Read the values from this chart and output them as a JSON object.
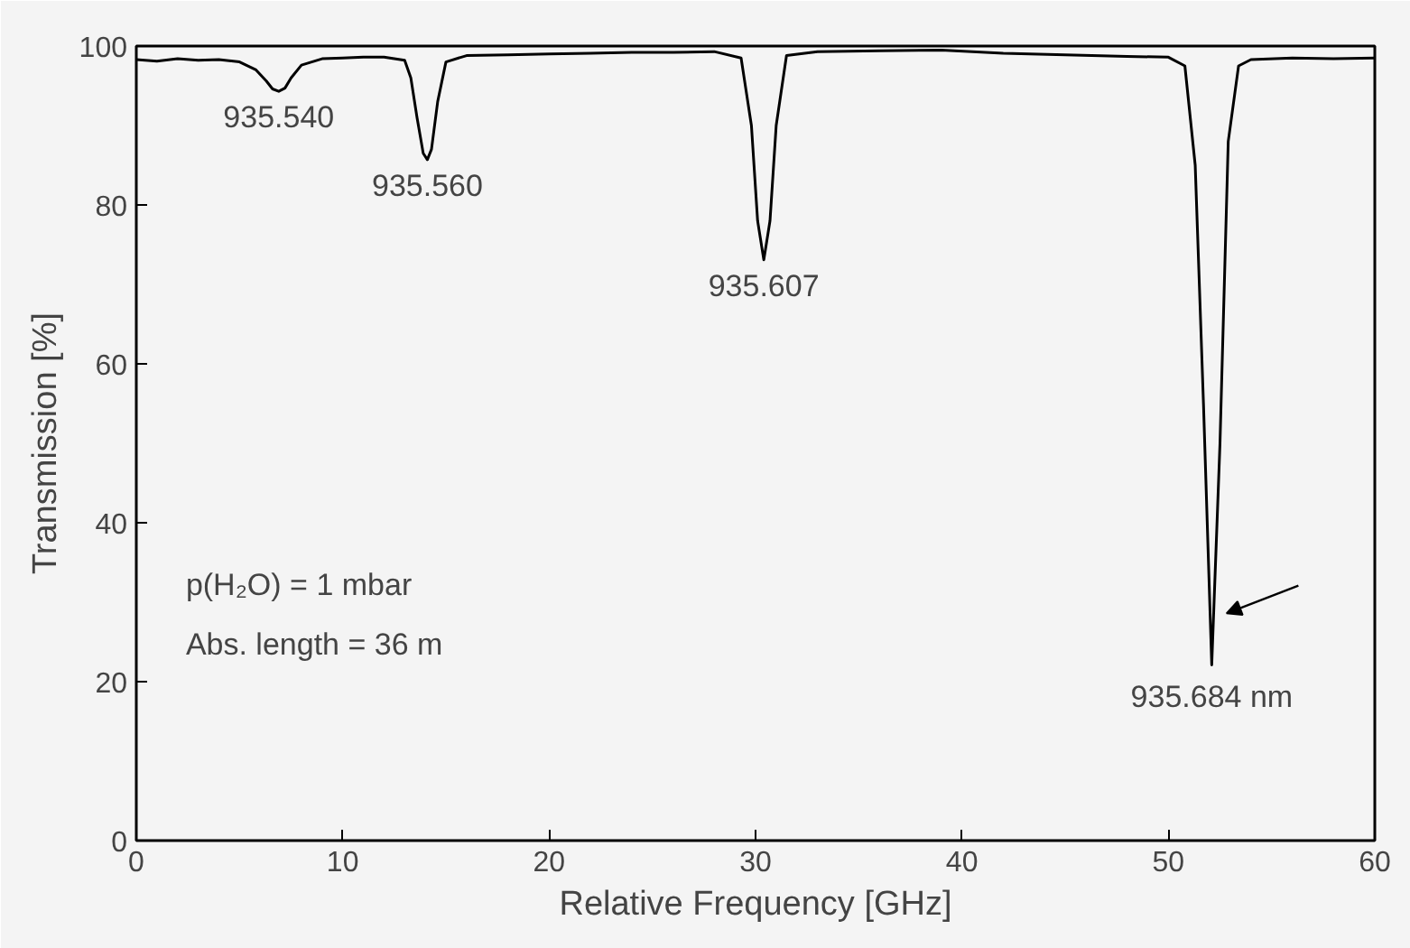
{
  "chart_data": {
    "type": "line",
    "xlabel": "Relative Frequency [GHz]",
    "ylabel": "Transmission [%]",
    "xlim": [
      0,
      60
    ],
    "ylim": [
      0,
      100
    ],
    "xticks": [
      0,
      10,
      20,
      30,
      40,
      50,
      60
    ],
    "yticks": [
      0,
      20,
      40,
      60,
      80,
      100
    ],
    "line_style": "solid",
    "series": [
      {
        "color": "#000000",
        "x": [
          0,
          1,
          2,
          3,
          4,
          5,
          5.8,
          6.3,
          6.6,
          6.9,
          7.2,
          7.5,
          8,
          9,
          10,
          11,
          12,
          13,
          13.3,
          13.6,
          13.9,
          14.1,
          14.3,
          14.6,
          15,
          16,
          18,
          20,
          22,
          24,
          26,
          28,
          29.3,
          29.8,
          30.1,
          30.4,
          30.7,
          31,
          31.5,
          33,
          36,
          39,
          42,
          45,
          48,
          50,
          50.8,
          51.3,
          51.7,
          52.1,
          52.5,
          52.9,
          53.4,
          54,
          56,
          58,
          60
        ],
        "values": [
          98.3,
          98.1,
          98.4,
          98.2,
          98.3,
          98.0,
          97,
          95.6,
          94.6,
          94.3,
          94.7,
          96,
          97.6,
          98.4,
          98.5,
          98.6,
          98.6,
          98.2,
          96,
          91,
          86.5,
          85.7,
          87,
          93,
          98,
          98.8,
          98.9,
          99,
          99.1,
          99.2,
          99.2,
          99.3,
          98.5,
          90,
          78,
          73.1,
          78,
          90,
          98.8,
          99.3,
          99.4,
          99.5,
          99.1,
          98.9,
          98.7,
          98.6,
          97.5,
          85,
          55,
          22.1,
          50,
          88,
          97.5,
          98.3,
          98.5,
          98.4,
          98.5
        ]
      }
    ],
    "annotations": [
      {
        "text": "935.540",
        "x": 6.9,
        "y": 94.3
      },
      {
        "text": "935.560",
        "x": 14.1,
        "y": 85.7
      },
      {
        "text": "935.607",
        "x": 30.4,
        "y": 73.1
      },
      {
        "text": "935.684 nm",
        "x": 52.1,
        "y": 22.1
      },
      "p(H₂O) = 1 mbar",
      "Abs. length = 36 m"
    ]
  }
}
